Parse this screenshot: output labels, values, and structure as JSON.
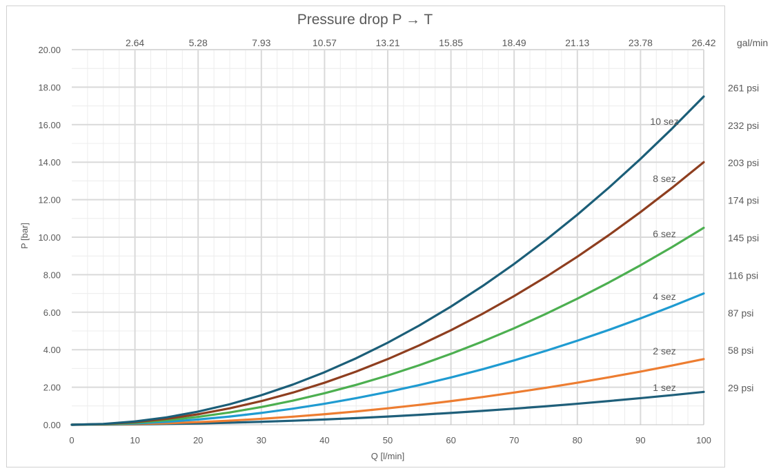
{
  "chart_data": {
    "type": "line",
    "title": "Pressure drop P → T",
    "xlabel": "Q [l/min]",
    "ylabel": "P [bar]",
    "xlim": [
      0,
      100
    ],
    "ylim": [
      0,
      20
    ],
    "x_ticks": [
      0,
      10,
      20,
      30,
      40,
      50,
      60,
      70,
      80,
      90,
      100
    ],
    "y_ticks": [
      "0.00",
      "2.00",
      "4.00",
      "6.00",
      "8.00",
      "10.00",
      "12.00",
      "14.00",
      "16.00",
      "18.00",
      "20.00"
    ],
    "grid": true,
    "secondary_x": {
      "unit": "gal/min",
      "ticks": [
        {
          "x": 10,
          "label": "2.64"
        },
        {
          "x": 20,
          "label": "5.28"
        },
        {
          "x": 30,
          "label": "7.93"
        },
        {
          "x": 40,
          "label": "10.57"
        },
        {
          "x": 50,
          "label": "13.21"
        },
        {
          "x": 60,
          "label": "15.85"
        },
        {
          "x": 70,
          "label": "18.49"
        },
        {
          "x": 80,
          "label": "21.13"
        },
        {
          "x": 90,
          "label": "23.78"
        },
        {
          "x": 100,
          "label": "26.42"
        }
      ]
    },
    "secondary_y": {
      "ticks": [
        {
          "y": 2,
          "label": "29 psi"
        },
        {
          "y": 4,
          "label": "58 psi"
        },
        {
          "y": 6,
          "label": "87 psi"
        },
        {
          "y": 8,
          "label": "116 psi"
        },
        {
          "y": 10,
          "label": "145 psi"
        },
        {
          "y": 12,
          "label": "174 psi"
        },
        {
          "y": 14,
          "label": "203 psi"
        },
        {
          "y": 16,
          "label": "232 psi"
        },
        {
          "y": 18,
          "label": "261 psi"
        }
      ]
    },
    "x": [
      0,
      5,
      10,
      15,
      20,
      25,
      30,
      35,
      40,
      45,
      50,
      55,
      60,
      65,
      70,
      75,
      80,
      85,
      90,
      95,
      100
    ],
    "series": [
      {
        "name": "1 sez",
        "color": "#1f5f7a",
        "label_x": 94,
        "label_y": 1.8,
        "values": [
          0,
          0.0044,
          0.0175,
          0.0394,
          0.07,
          0.1094,
          0.1575,
          0.2144,
          0.28,
          0.3544,
          0.4375,
          0.5294,
          0.63,
          0.7394,
          0.8575,
          0.9844,
          1.12,
          1.2644,
          1.4175,
          1.5794,
          1.75
        ]
      },
      {
        "name": "2 sez",
        "color": "#ed7d31",
        "label_x": 94,
        "label_y": 3.75,
        "values": [
          0,
          0.0088,
          0.035,
          0.0788,
          0.14,
          0.2188,
          0.315,
          0.4288,
          0.56,
          0.7088,
          0.875,
          1.0588,
          1.26,
          1.4788,
          1.715,
          1.9688,
          2.24,
          2.5288,
          2.835,
          3.1588,
          3.5
        ]
      },
      {
        "name": "4 sez",
        "color": "#1f9bd1",
        "label_x": 94,
        "label_y": 6.65,
        "values": [
          0,
          0.0175,
          0.07,
          0.1575,
          0.28,
          0.4375,
          0.63,
          0.8575,
          1.12,
          1.4175,
          1.75,
          2.1175,
          2.52,
          2.9575,
          3.43,
          3.9375,
          4.48,
          5.0575,
          5.67,
          6.3175,
          7.0
        ]
      },
      {
        "name": "6 sez",
        "color": "#4caf50",
        "label_x": 94,
        "label_y": 10.0,
        "values": [
          0,
          0.0263,
          0.105,
          0.2363,
          0.42,
          0.6563,
          0.945,
          1.2863,
          1.68,
          2.1263,
          2.625,
          3.1763,
          3.78,
          4.4363,
          5.145,
          5.9063,
          6.72,
          7.5863,
          8.505,
          9.4763,
          10.5
        ]
      },
      {
        "name": "8 sez",
        "color": "#8e3e1f",
        "label_x": 94,
        "label_y": 12.95,
        "values": [
          0,
          0.035,
          0.14,
          0.315,
          0.56,
          0.875,
          1.26,
          1.715,
          2.24,
          2.835,
          3.5,
          4.235,
          5.04,
          5.915,
          6.86,
          7.875,
          8.96,
          10.115,
          11.34,
          12.635,
          14.0
        ]
      },
      {
        "name": "10 sez",
        "color": "#1b5e78",
        "label_x": 94,
        "label_y": 16.0,
        "values": [
          0,
          0.0438,
          0.175,
          0.3938,
          0.7,
          1.0938,
          1.575,
          2.1438,
          2.8,
          3.5438,
          4.375,
          5.2938,
          6.3,
          7.3938,
          8.575,
          9.8438,
          11.2,
          12.6438,
          14.175,
          15.7938,
          17.5
        ]
      }
    ]
  }
}
